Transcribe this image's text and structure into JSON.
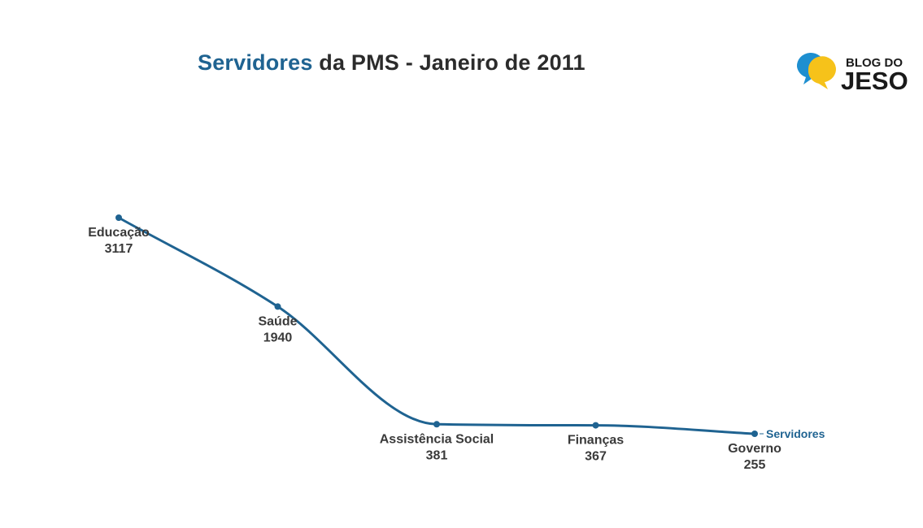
{
  "header": {
    "title_accent": "Servidores",
    "title_rest": " da PMS - Janeiro de 2011"
  },
  "logo": {
    "line1": "BLOG DO",
    "line2": "JESO",
    "colors": {
      "blue": "#1e8fd0",
      "yellow": "#f6c21a",
      "text": "#1a1a1a"
    }
  },
  "colors": {
    "series": "#1f6391",
    "label_text": "#3a3a3a"
  },
  "chart_data": {
    "type": "line",
    "title": "Servidores da PMS - Janeiro de 2011",
    "categories": [
      "Educação",
      "Saúde",
      "Assistência Social",
      "Finanças",
      "Governo"
    ],
    "series": [
      {
        "name": "Servidores",
        "values": [
          3117,
          1940,
          381,
          367,
          255
        ]
      }
    ],
    "data_labels": [
      "3117",
      "1940",
      "381",
      "367",
      "255"
    ],
    "xlabel": "",
    "ylabel": "",
    "grid": false,
    "axes_visible": false,
    "legend": "series label at end of line (right)",
    "smooth": true
  }
}
